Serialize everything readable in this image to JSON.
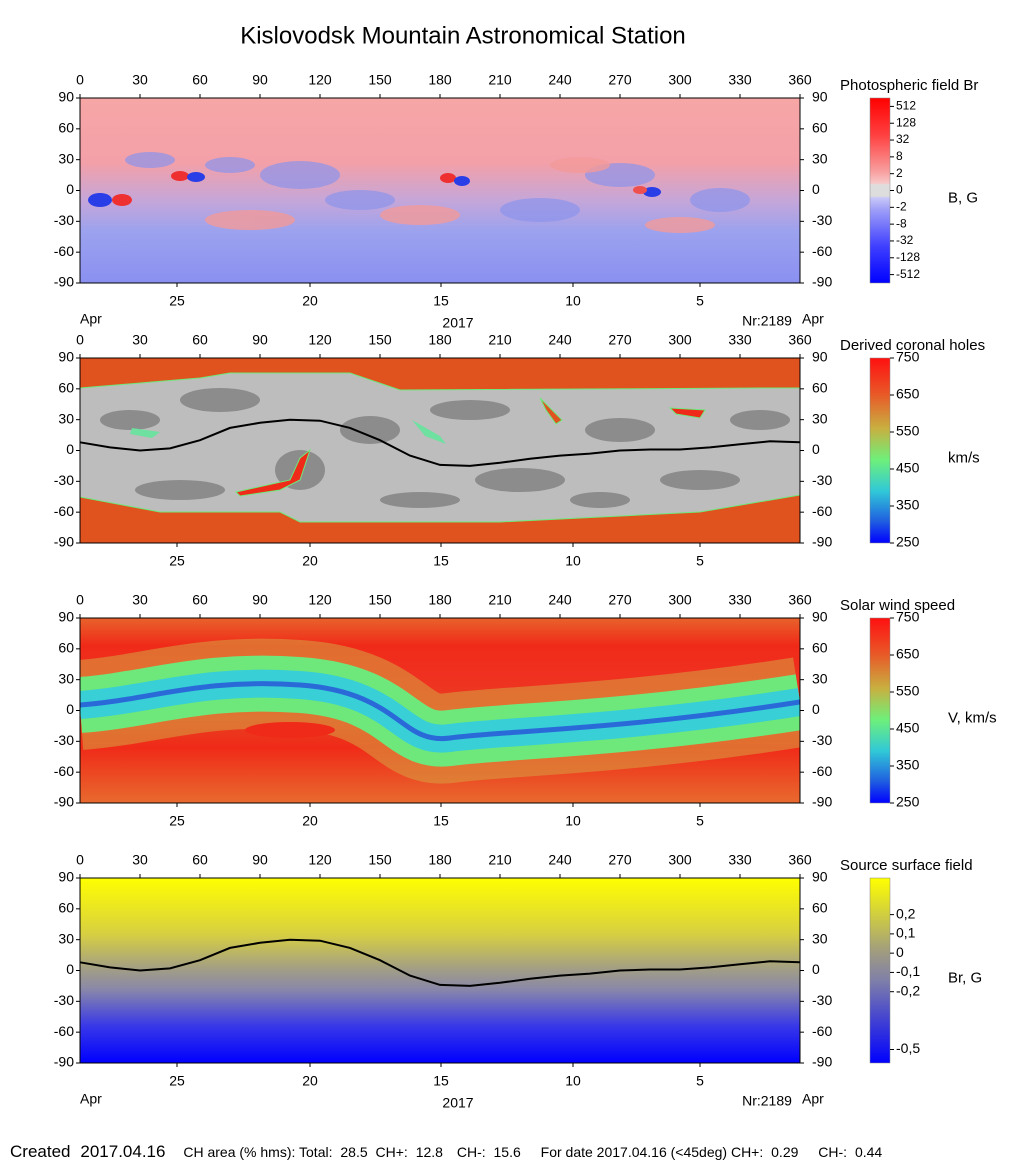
{
  "title": "Kislovodsk Mountain Astronomical Station",
  "chart_data": [
    {
      "type": "heatmap",
      "title": "Photospheric field Br",
      "colorbar_label": "B, G",
      "xlim": [
        0,
        360
      ],
      "xticks": [
        0,
        30,
        60,
        90,
        120,
        150,
        180,
        210,
        240,
        270,
        300,
        330,
        360
      ],
      "ylim": [
        -90,
        90
      ],
      "yticks": [
        90,
        60,
        30,
        0,
        -30,
        -60,
        -90
      ],
      "date_ticks": [
        {
          "value": 48.5,
          "label": "25"
        },
        {
          "value": 115,
          "label": "20"
        },
        {
          "value": 180.5,
          "label": "15"
        },
        {
          "value": 246.5,
          "label": "10"
        },
        {
          "value": 310,
          "label": "5"
        }
      ],
      "month": "Apr",
      "year": "2017",
      "rotation": "Nr:2189",
      "colorbar_scale": "symlog",
      "clim": [
        -1024,
        1024
      ],
      "colorbar_ticks": [
        512,
        128,
        32,
        8,
        2,
        0,
        -2,
        -8,
        -32,
        -128,
        -512
      ]
    },
    {
      "type": "heatmap",
      "title": "Derived coronal holes",
      "colorbar_label": "km/s",
      "xlim": [
        0,
        360
      ],
      "xticks": [
        0,
        30,
        60,
        90,
        120,
        150,
        180,
        210,
        240,
        270,
        300,
        330,
        360
      ],
      "ylim": [
        -90,
        90
      ],
      "yticks": [
        90,
        60,
        30,
        0,
        -30,
        -60,
        -90
      ],
      "date_ticks": [
        {
          "value": 48.5,
          "label": "25"
        },
        {
          "value": 115,
          "label": "20"
        },
        {
          "value": 180.5,
          "label": "15"
        },
        {
          "value": 246.5,
          "label": "10"
        },
        {
          "value": 310,
          "label": "5"
        }
      ],
      "colorbar_scale": "linear",
      "clim": [
        250,
        750
      ],
      "colorbar_ticks": [
        750,
        650,
        550,
        450,
        350,
        250
      ],
      "neutral_line": {
        "color": "#000000",
        "x": [
          0,
          15,
          30,
          45,
          60,
          75,
          90,
          105,
          120,
          135,
          150,
          165,
          180,
          195,
          210,
          225,
          240,
          255,
          270,
          285,
          300,
          315,
          330,
          345,
          360
        ],
        "y": [
          8,
          3,
          0,
          2,
          10,
          22,
          27,
          30,
          29,
          22,
          10,
          -5,
          -14,
          -15,
          -12,
          -8,
          -5,
          -3,
          0,
          1,
          1,
          3,
          6,
          9,
          8
        ]
      }
    },
    {
      "type": "heatmap",
      "title": "Solar wind speed",
      "colorbar_label": "V, km/s",
      "xlim": [
        0,
        360
      ],
      "xticks": [
        0,
        30,
        60,
        90,
        120,
        150,
        180,
        210,
        240,
        270,
        300,
        330,
        360
      ],
      "ylim": [
        -90,
        90
      ],
      "yticks": [
        90,
        60,
        30,
        0,
        -30,
        -60,
        -90
      ],
      "date_ticks": [
        {
          "value": 48.5,
          "label": "25"
        },
        {
          "value": 115,
          "label": "20"
        },
        {
          "value": 180.5,
          "label": "15"
        },
        {
          "value": 246.5,
          "label": "10"
        },
        {
          "value": 310,
          "label": "5"
        }
      ],
      "colorbar_scale": "linear",
      "clim": [
        250,
        750
      ],
      "colorbar_ticks": [
        750,
        650,
        550,
        450,
        350,
        250
      ]
    },
    {
      "type": "heatmap",
      "title": "Source surface field",
      "colorbar_label": "Br, G",
      "xlim": [
        0,
        360
      ],
      "xticks": [
        0,
        30,
        60,
        90,
        120,
        150,
        180,
        210,
        240,
        270,
        300,
        330,
        360
      ],
      "ylim": [
        -90,
        90
      ],
      "yticks": [
        90,
        60,
        30,
        0,
        -30,
        -60,
        -90
      ],
      "date_ticks": [
        {
          "value": 48.5,
          "label": "25"
        },
        {
          "value": 115,
          "label": "20"
        },
        {
          "value": 180.5,
          "label": "15"
        },
        {
          "value": 246.5,
          "label": "10"
        },
        {
          "value": 310,
          "label": "5"
        }
      ],
      "month": "Apr",
      "year": "2017",
      "rotation": "Nr:2189",
      "colorbar_scale": "linear",
      "clim": [
        -0.57,
        0.39
      ],
      "colorbar_ticks": [
        {
          "value": 0.2,
          "label": "0,2"
        },
        {
          "value": 0.1,
          "label": "0,1"
        },
        0,
        {
          "value": -0.1,
          "label": "-0,1"
        },
        {
          "value": -0.2,
          "label": "-0,2"
        },
        {
          "value": -0.5,
          "label": "-0,5"
        }
      ],
      "neutral_line": {
        "color": "#000000",
        "x": [
          0,
          15,
          30,
          45,
          60,
          75,
          90,
          105,
          120,
          135,
          150,
          165,
          180,
          195,
          210,
          225,
          240,
          255,
          270,
          285,
          300,
          315,
          330,
          345,
          360
        ],
        "y": [
          8,
          3,
          0,
          2,
          10,
          22,
          27,
          30,
          29,
          22,
          10,
          -5,
          -14,
          -15,
          -12,
          -8,
          -5,
          -3,
          0,
          1,
          1,
          3,
          6,
          9,
          8
        ]
      }
    }
  ],
  "footer": {
    "created_label": "Created",
    "created_date": "2017.04.16",
    "ch_area_label": "CH area (% hms): Total:",
    "total": 28.5,
    "ch_plus_label": "CH+:",
    "ch_plus": 12.8,
    "ch_minus_label": "CH-:",
    "ch_minus": 15.6,
    "for_date_label": "For date 2017.04.16 (<45deg) CH+:",
    "date_ch_plus": 0.29,
    "date_ch_minus_label": "CH-:",
    "date_ch_minus": 0.44
  }
}
